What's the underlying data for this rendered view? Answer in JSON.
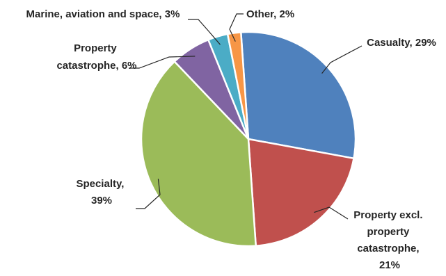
{
  "chart_data": {
    "type": "pie",
    "title": "",
    "start_angle_deg": -4,
    "slices": [
      {
        "name": "Casualty",
        "value": 29,
        "color": "#4F81BD",
        "label_lines": [
          "Casualty, 29%"
        ]
      },
      {
        "name": "Property excl. property catastrophe",
        "value": 21,
        "color": "#C0504D",
        "label_lines": [
          "Property excl.",
          "property",
          "catastrophe,",
          "21%"
        ]
      },
      {
        "name": "Specialty",
        "value": 39,
        "color": "#9BBB59",
        "label_lines": [
          "Specialty,",
          "39%"
        ]
      },
      {
        "name": "Property catastrophe",
        "value": 6,
        "color": "#8064A2",
        "label_lines": [
          "Property",
          "catastrophe, 6%"
        ]
      },
      {
        "name": "Marine, aviation and space",
        "value": 3,
        "color": "#4BACC6",
        "label_lines": [
          "Marine, aviation and space, 3%"
        ]
      },
      {
        "name": "Other",
        "value": 2,
        "color": "#F79646",
        "label_lines": [
          "Other, 2%"
        ]
      }
    ]
  }
}
